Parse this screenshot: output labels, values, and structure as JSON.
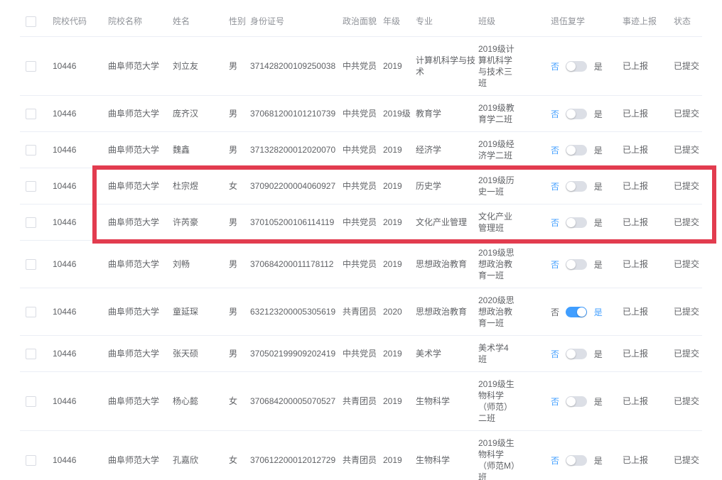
{
  "table": {
    "headers": [
      "院校代码",
      "院校名称",
      "姓名",
      "性别",
      "身份证号",
      "政治面貌",
      "年级",
      "专业",
      "班级",
      "退伍复学",
      "事迹上报",
      "状态"
    ],
    "toggle": {
      "off_label": "否",
      "on_label": "是"
    },
    "rows": [
      {
        "code": "10446",
        "school": "曲阜师范大学",
        "name": "刘立友",
        "gender": "男",
        "id_number": "371428200109250038",
        "political_status": "中共党员",
        "grade": "2019",
        "major": "计算机科学与技术",
        "class_name": "2019级计算机科学与技术三班",
        "veteran_return": false,
        "deeds_report": "已上报",
        "status": "已提交",
        "highlighted": false
      },
      {
        "code": "10446",
        "school": "曲阜师范大学",
        "name": "庞齐汉",
        "gender": "男",
        "id_number": "370681200101210739",
        "political_status": "中共党员",
        "grade": "2019级",
        "major": "教育学",
        "class_name": "2019级教育学二班",
        "veteran_return": false,
        "deeds_report": "已上报",
        "status": "已提交",
        "highlighted": false
      },
      {
        "code": "10446",
        "school": "曲阜师范大学",
        "name": "魏鑫",
        "gender": "男",
        "id_number": "371328200012020070",
        "political_status": "中共党员",
        "grade": "2019",
        "major": "经济学",
        "class_name": "2019级经济学二班",
        "veteran_return": false,
        "deeds_report": "已上报",
        "status": "已提交",
        "highlighted": false
      },
      {
        "code": "10446",
        "school": "曲阜师范大学",
        "name": "杜宗煜",
        "gender": "女",
        "id_number": "370902200004060927",
        "political_status": "中共党员",
        "grade": "2019",
        "major": "历史学",
        "class_name": "2019级历史一班",
        "veteran_return": false,
        "deeds_report": "已上报",
        "status": "已提交",
        "highlighted": true
      },
      {
        "code": "10446",
        "school": "曲阜师范大学",
        "name": "许芮豪",
        "gender": "男",
        "id_number": "370105200106114119",
        "political_status": "中共党员",
        "grade": "2019",
        "major": "文化产业管理",
        "class_name": "文化产业管理班",
        "veteran_return": false,
        "deeds_report": "已上报",
        "status": "已提交",
        "highlighted": true
      },
      {
        "code": "10446",
        "school": "曲阜师范大学",
        "name": "刘畅",
        "gender": "男",
        "id_number": "370684200011178112",
        "political_status": "中共党员",
        "grade": "2019",
        "major": "思想政治教育",
        "class_name": "2019级思想政治教育一班",
        "veteran_return": false,
        "deeds_report": "已上报",
        "status": "已提交",
        "highlighted": false
      },
      {
        "code": "10446",
        "school": "曲阜师范大学",
        "name": "童延琛",
        "gender": "男",
        "id_number": "632123200005305619",
        "political_status": "共青团员",
        "grade": "2020",
        "major": "思想政治教育",
        "class_name": "2020级思想政治教育一班",
        "veteran_return": true,
        "deeds_report": "已上报",
        "status": "已提交",
        "highlighted": false
      },
      {
        "code": "10446",
        "school": "曲阜师范大学",
        "name": "张天硕",
        "gender": "男",
        "id_number": "370502199909202419",
        "political_status": "中共党员",
        "grade": "2019",
        "major": "美术学",
        "class_name": "美术学4班",
        "veteran_return": false,
        "deeds_report": "已上报",
        "status": "已提交",
        "highlighted": false
      },
      {
        "code": "10446",
        "school": "曲阜师范大学",
        "name": "杨心懿",
        "gender": "女",
        "id_number": "370684200005070527",
        "political_status": "共青团员",
        "grade": "2019",
        "major": "生物科学",
        "class_name": "2019级生物科学（师范）二班",
        "veteran_return": false,
        "deeds_report": "已上报",
        "status": "已提交",
        "highlighted": false
      },
      {
        "code": "10446",
        "school": "曲阜师范大学",
        "name": "孔嘉欣",
        "gender": "女",
        "id_number": "370612200012012729",
        "political_status": "共青团员",
        "grade": "2019",
        "major": "生物科学",
        "class_name": "2019级生物科学（师范M）班",
        "veteran_return": false,
        "deeds_report": "已上报",
        "status": "已提交",
        "highlighted": false
      }
    ]
  },
  "colors": {
    "accent_blue": "#409eff",
    "toggle_off_track": "#dcdfe6",
    "highlight_border": "#e23c4f",
    "header_text": "#909399",
    "body_text": "#606266"
  }
}
